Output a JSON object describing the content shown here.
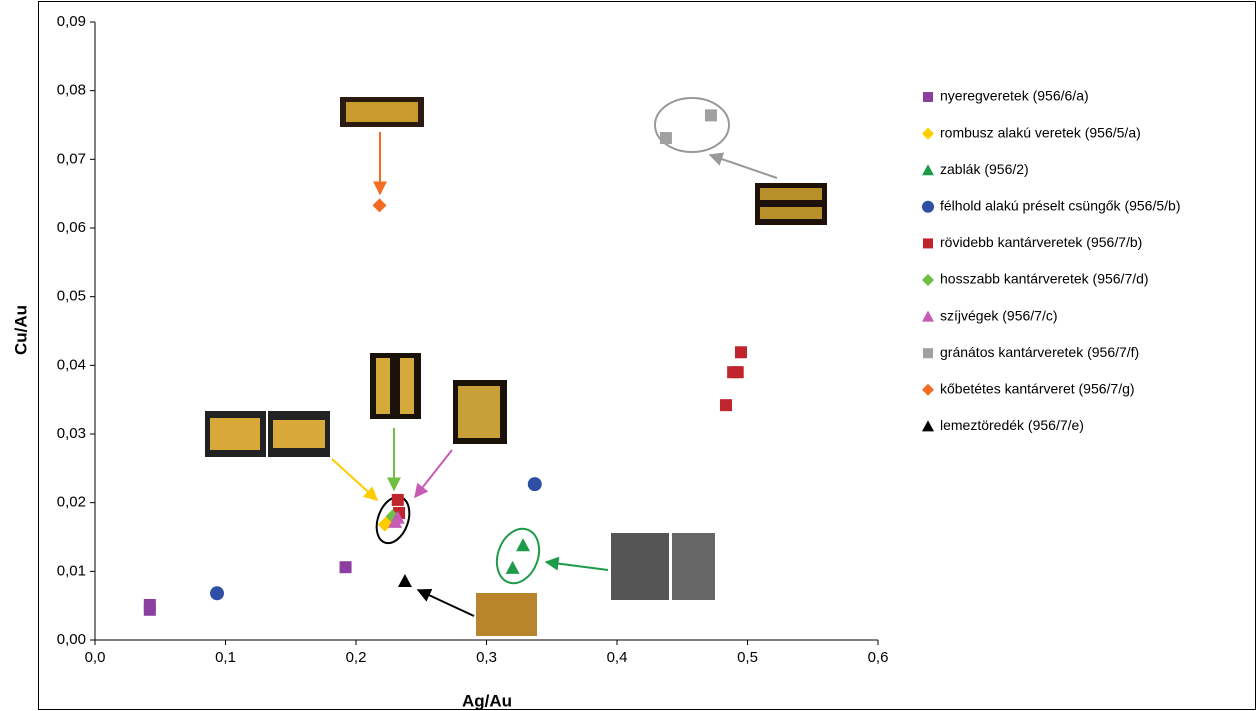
{
  "chart_data": {
    "type": "scatter",
    "x_label": "Ag/Au",
    "y_label": "Cu/Au",
    "xlim": [
      0,
      0.6
    ],
    "ylim": [
      0,
      0.09
    ],
    "xticks": [
      {
        "value": 0,
        "label": "0,0"
      },
      {
        "value": 0.1,
        "label": "0,1"
      },
      {
        "value": 0.2,
        "label": "0,2"
      },
      {
        "value": 0.3,
        "label": "0,3"
      },
      {
        "value": 0.4,
        "label": "0,4"
      },
      {
        "value": 0.5,
        "label": "0,5"
      },
      {
        "value": 0.6,
        "label": "0,6"
      }
    ],
    "yticks": [
      {
        "value": 0,
        "label": "0,00"
      },
      {
        "value": 0.01,
        "label": "0,01"
      },
      {
        "value": 0.02,
        "label": "0,02"
      },
      {
        "value": 0.03,
        "label": "0,03"
      },
      {
        "value": 0.04,
        "label": "0,04"
      },
      {
        "value": 0.05,
        "label": "0,05"
      },
      {
        "value": 0.06,
        "label": "0,06"
      },
      {
        "value": 0.07,
        "label": "0,07"
      },
      {
        "value": 0.08,
        "label": "0,08"
      },
      {
        "value": 0.09,
        "label": "0,09"
      }
    ],
    "grid": false,
    "legend": "right",
    "series": [
      {
        "name": "nyeregveretek (956/6/a)",
        "color": "#8b3fa1",
        "marker": "square",
        "x": [
          0.042,
          0.042,
          0.192
        ],
        "values": [
          0.0044,
          0.0051,
          0.0106
        ]
      },
      {
        "name": "rombusz alakú veretek (956/5/a)",
        "color": "#ffcc00",
        "marker": "diamond",
        "x": [
          0.222,
          0.226
        ],
        "values": [
          0.0168,
          0.0175
        ]
      },
      {
        "name": "zablák (956/2)",
        "color": "#1e9b48",
        "marker": "triangle",
        "x": [
          0.32,
          0.328
        ],
        "values": [
          0.0105,
          0.0138
        ]
      },
      {
        "name": "félhold alakú préselt csüngők (956/5/b)",
        "color": "#2e4fa3",
        "marker": "circle",
        "x": [
          0.0935,
          0.337
        ],
        "values": [
          0.0068,
          0.0227
        ]
      },
      {
        "name": "rövidebb kantárveretek (956/7/b)",
        "color": "#c0242c",
        "marker": "square",
        "x": [
          0.232,
          0.233,
          0.4835,
          0.489,
          0.4925,
          0.495
        ],
        "values": [
          0.0204,
          0.0185,
          0.0342,
          0.039,
          0.039,
          0.0419
        ]
      },
      {
        "name": "hosszabb kantárveretek (956/7/d)",
        "color": "#70bf44",
        "marker": "diamond",
        "x": [
          0.228
        ],
        "values": [
          0.018
        ]
      },
      {
        "name": "szíjvégek (956/7/c)",
        "color": "#c75bb4",
        "marker": "triangle",
        "x": [
          0.23,
          0.232
        ],
        "values": [
          0.0172,
          0.0178
        ]
      },
      {
        "name": "gránátos kantárveretek (956/7/f)",
        "color": "#a0a0a0",
        "marker": "square",
        "x": [
          0.4375,
          0.472
        ],
        "values": [
          0.0731,
          0.0764
        ]
      },
      {
        "name": "kőbetétes kantárveret (956/7/g)",
        "color": "#f26c21",
        "marker": "diamond",
        "x": [
          0.218
        ],
        "values": [
          0.0633
        ]
      },
      {
        "name": "lemeztöredék (956/7/e)",
        "color": "#000000",
        "marker": "triangle",
        "x": [
          0.2375
        ],
        "values": [
          0.0086
        ]
      }
    ]
  }
}
